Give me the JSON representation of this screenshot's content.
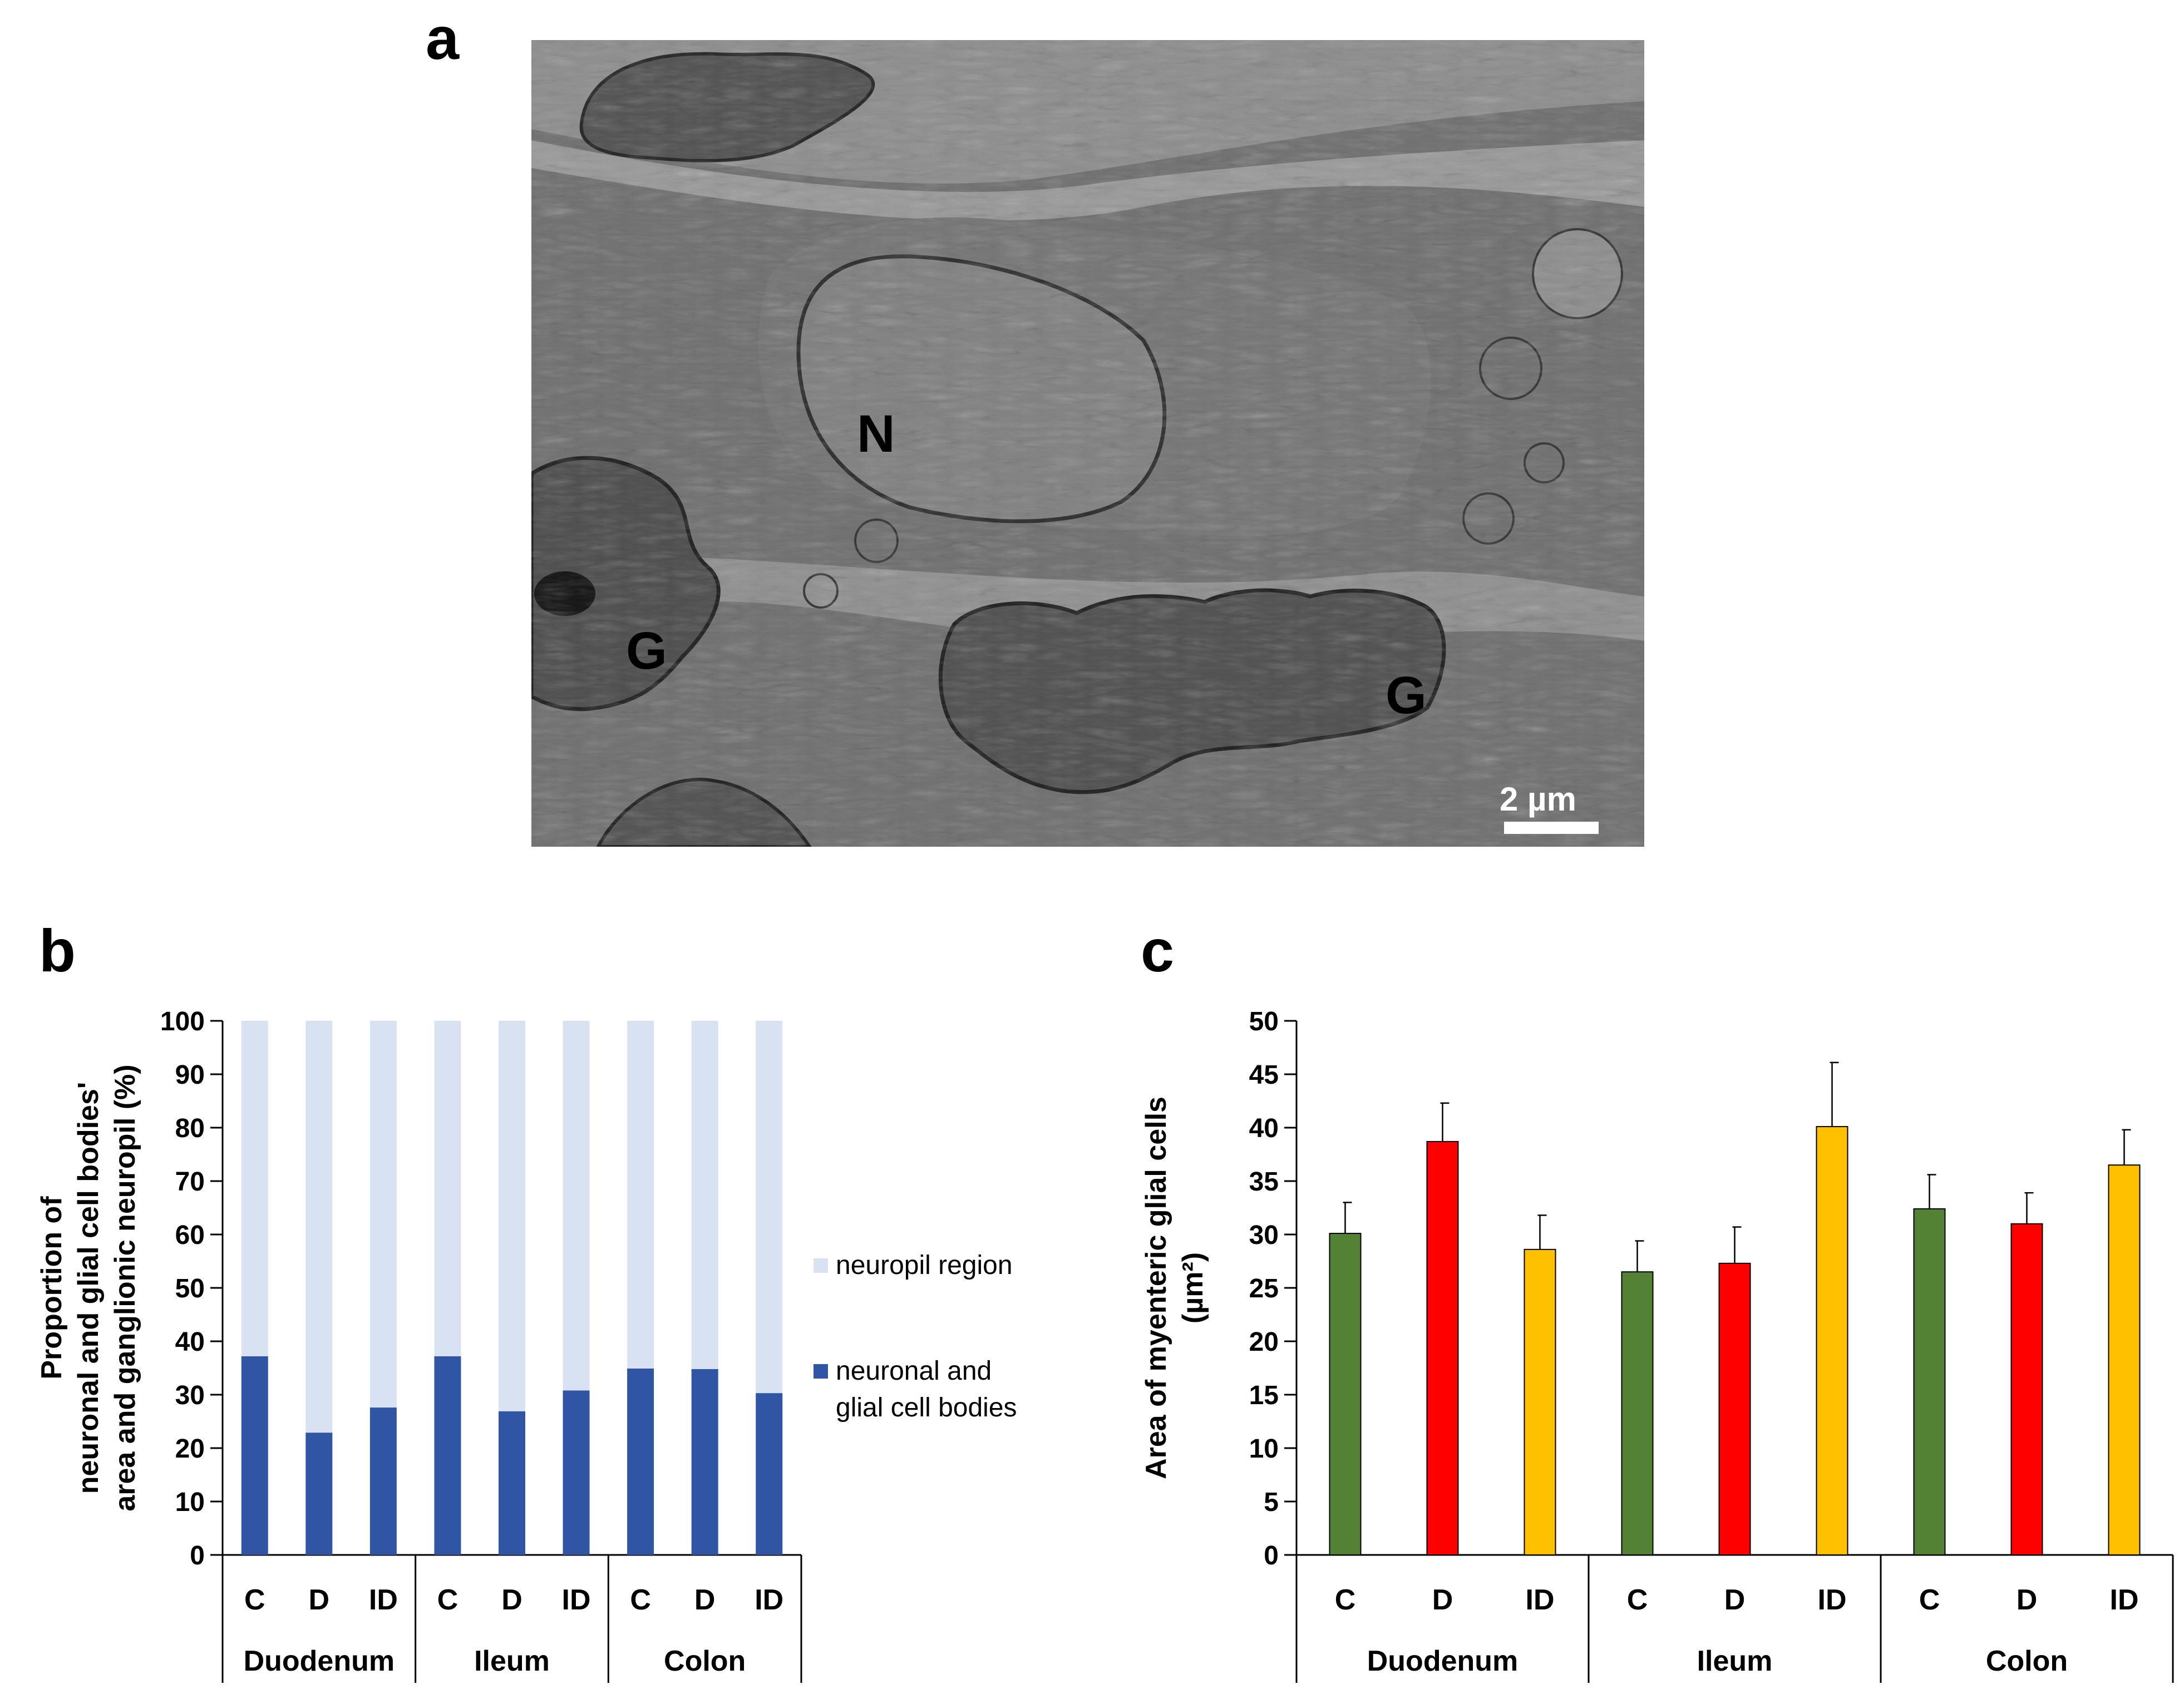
{
  "figure": {
    "panel_a": {
      "letter": "a",
      "labels": {
        "neuron": "N",
        "glia_left": "G",
        "glia_right": "G"
      },
      "scale_bar": "2 µm"
    },
    "panel_b": {
      "letter": "b"
    },
    "panel_c": {
      "letter": "c"
    }
  },
  "chart_data": [
    {
      "type": "bar",
      "stacked": true,
      "groups": [
        "Duodenum",
        "Ileum",
        "Colon"
      ],
      "categories": [
        "C",
        "D",
        "ID",
        "C",
        "D",
        "ID",
        "C",
        "D",
        "ID"
      ],
      "series": [
        {
          "name": "neuronal and glial cell bodies",
          "color": "#2f55a4",
          "values": [
            37.2,
            22.9,
            27.6,
            37.2,
            26.9,
            30.8,
            34.9,
            34.8,
            30.3
          ]
        },
        {
          "name": "neuropil region",
          "color": "#d9e2f3",
          "values": [
            62.8,
            77.1,
            72.4,
            62.8,
            73.1,
            69.2,
            65.1,
            65.2,
            69.7
          ]
        }
      ],
      "ylabel_lines": [
        "Proportion of",
        "neuronal and glial cell bodies'",
        "area and ganglionic neuropil (%)"
      ],
      "ylim": [
        0,
        100
      ],
      "yticks": [
        0,
        10,
        20,
        30,
        40,
        50,
        60,
        70,
        80,
        90,
        100
      ],
      "legend_placement": "right",
      "legend_order": [
        "neuropil region",
        "neuronal and glial cell bodies"
      ],
      "grid": false
    },
    {
      "type": "bar",
      "groups": [
        "Duodenum",
        "Ileum",
        "Colon"
      ],
      "categories": [
        "C",
        "D",
        "ID",
        "C",
        "D",
        "ID",
        "C",
        "D",
        "ID"
      ],
      "values": [
        30.1,
        38.7,
        28.6,
        26.5,
        27.3,
        40.1,
        32.4,
        31.0,
        36.5
      ],
      "errors": [
        2.9,
        3.6,
        3.2,
        2.9,
        3.4,
        6.0,
        3.2,
        2.9,
        3.3
      ],
      "colors": [
        "#548235",
        "#ff0000",
        "#ffc000",
        "#548235",
        "#ff0000",
        "#ffc000",
        "#548235",
        "#ff0000",
        "#ffc000"
      ],
      "ylabel_lines": [
        "Area of myenteric glial cells",
        "(µm²)"
      ],
      "ylim": [
        0,
        50
      ],
      "yticks": [
        0,
        5,
        10,
        15,
        20,
        25,
        30,
        35,
        40,
        45,
        50
      ],
      "grid": false
    }
  ]
}
